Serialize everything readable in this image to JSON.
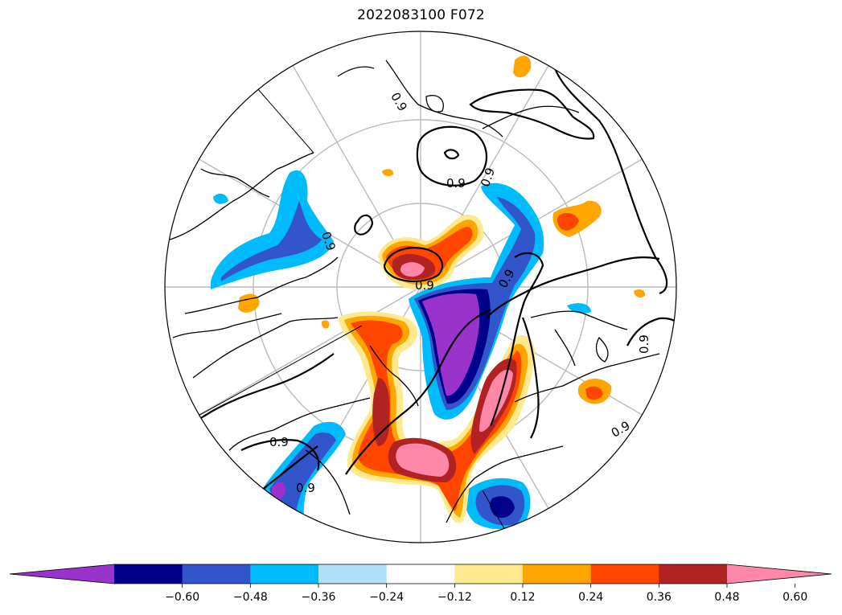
{
  "title": "2022083100 F072",
  "map": {
    "projection": "north-polar-stereographic",
    "contour_label": "0.9",
    "contour_labels_shown": [
      "0.9",
      "0.9",
      "0.9",
      "0.9",
      "0.9",
      "0.9",
      "0.9",
      "0.9",
      "0.9",
      "0.9"
    ]
  },
  "colorbar": {
    "extend": "both",
    "ticks": [
      "−0.60",
      "−0.48",
      "−0.36",
      "−0.24",
      "−0.12",
      "0.12",
      "0.24",
      "0.36",
      "0.48",
      "0.60"
    ],
    "colors": [
      "#9933cc",
      "#00008b",
      "#3355cc",
      "#00bbf9",
      "#aee0f7",
      "#ffffff",
      "#ffe98f",
      "#ffa500",
      "#ff4500",
      "#b22222",
      "#ff88aa"
    ]
  },
  "palette": {
    "neg_strong": "#9933cc",
    "neg_dark": "#00008b",
    "neg_mid": "#3355cc",
    "neg_light": "#00bbf9",
    "neg_pale": "#aee0f7",
    "pos_pale": "#ffe98f",
    "pos_light": "#ffa500",
    "pos_mid": "#ff4500",
    "pos_dark": "#b22222",
    "pos_strong": "#ff88aa"
  }
}
